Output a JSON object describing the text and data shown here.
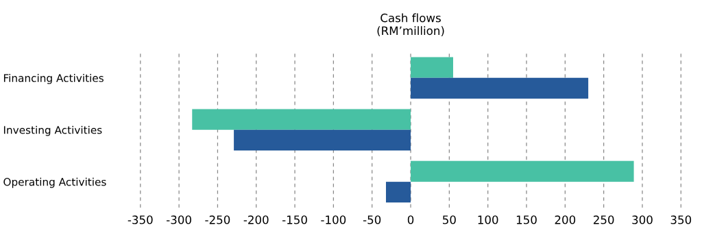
{
  "chart_data": {
    "type": "bar",
    "orientation": "horizontal",
    "title": "Cash flows\n(RM’million)",
    "categories": [
      "Financing Activities",
      "Investing Activities",
      "Operating Activities"
    ],
    "series": [
      {
        "color": "#48c1a4",
        "values": [
          55,
          -283,
          289
        ]
      },
      {
        "color": "#265a9a",
        "values": [
          230,
          -229,
          -32
        ]
      }
    ],
    "xlim": [
      -350,
      350
    ],
    "xticks": [
      -350,
      -300,
      -250,
      -200,
      -150,
      -100,
      -50,
      0,
      50,
      100,
      150,
      200,
      250,
      300,
      350
    ],
    "grid": "x",
    "legend": false
  }
}
